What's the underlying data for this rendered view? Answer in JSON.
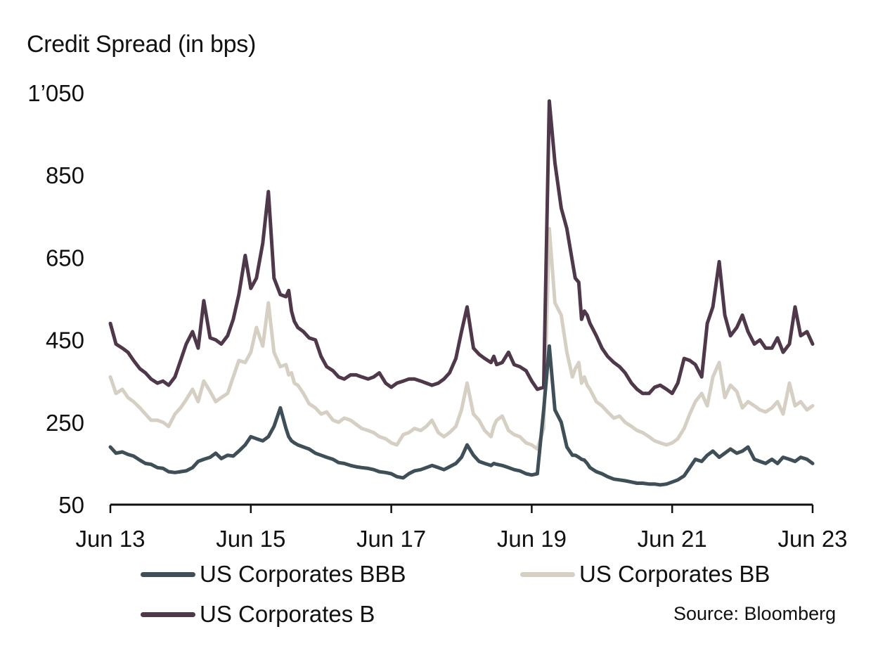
{
  "chart_data": {
    "type": "line",
    "title": "",
    "ylabel": "Credit Spread (in bps)",
    "xlabel": "",
    "ylim": [
      50,
      1050
    ],
    "yticks": [
      50,
      250,
      450,
      650,
      850,
      1050
    ],
    "ytick_labels": [
      "50",
      "250",
      "450",
      "650",
      "850",
      "1’050"
    ],
    "xlim": [
      2013.5,
      2023.5
    ],
    "xticks": [
      2013.5,
      2015.5,
      2017.5,
      2019.5,
      2021.5,
      2023.5
    ],
    "xtick_labels": [
      "Jun 13",
      "Jun 15",
      "Jun 17",
      "Jun 19",
      "Jun 21",
      "Jun 23"
    ],
    "grid": false,
    "legend_position": "bottom",
    "source": "Source: Bloomberg",
    "x": [
      2013.5,
      2013.58,
      2013.67,
      2013.75,
      2013.83,
      2013.92,
      2014.0,
      2014.08,
      2014.17,
      2014.25,
      2014.33,
      2014.42,
      2014.5,
      2014.58,
      2014.67,
      2014.75,
      2014.83,
      2014.92,
      2015.0,
      2015.08,
      2015.17,
      2015.25,
      2015.33,
      2015.42,
      2015.5,
      2015.58,
      2015.67,
      2015.75,
      2015.83,
      2015.92,
      2016.0,
      2016.04,
      2016.08,
      2016.12,
      2016.17,
      2016.25,
      2016.33,
      2016.42,
      2016.5,
      2016.58,
      2016.67,
      2016.75,
      2016.83,
      2016.92,
      2017.0,
      2017.08,
      2017.17,
      2017.25,
      2017.33,
      2017.42,
      2017.5,
      2017.58,
      2017.67,
      2017.75,
      2017.83,
      2017.92,
      2018.0,
      2018.08,
      2018.17,
      2018.25,
      2018.33,
      2018.42,
      2018.5,
      2018.58,
      2018.67,
      2018.75,
      2018.83,
      2018.92,
      2018.96,
      2019.0,
      2019.08,
      2019.17,
      2019.25,
      2019.33,
      2019.42,
      2019.5,
      2019.58,
      2019.67,
      2019.75,
      2019.83,
      2019.92,
      2020.0,
      2020.08,
      2020.12,
      2020.17,
      2020.21,
      2020.25,
      2020.29,
      2020.33,
      2020.42,
      2020.5,
      2020.58,
      2020.67,
      2020.75,
      2020.83,
      2020.92,
      2021.0,
      2021.08,
      2021.17,
      2021.25,
      2021.33,
      2021.42,
      2021.5,
      2021.58,
      2021.67,
      2021.75,
      2021.83,
      2021.92,
      2022.0,
      2022.08,
      2022.17,
      2022.25,
      2022.33,
      2022.42,
      2022.5,
      2022.58,
      2022.67,
      2022.75,
      2022.83,
      2022.92,
      2023.0,
      2023.08,
      2023.17,
      2023.25,
      2023.33,
      2023.42,
      2023.5
    ],
    "series": [
      {
        "name": "US Corporates BBB",
        "color": "#3f4f58",
        "values": [
          190,
          175,
          178,
          172,
          168,
          158,
          150,
          148,
          140,
          138,
          130,
          128,
          130,
          132,
          140,
          155,
          160,
          165,
          175,
          162,
          170,
          168,
          180,
          195,
          215,
          210,
          205,
          215,
          240,
          285,
          235,
          215,
          205,
          200,
          195,
          190,
          185,
          175,
          170,
          165,
          160,
          152,
          150,
          145,
          142,
          140,
          138,
          135,
          130,
          128,
          125,
          118,
          115,
          125,
          132,
          135,
          140,
          145,
          140,
          135,
          142,
          150,
          165,
          195,
          170,
          155,
          150,
          145,
          150,
          148,
          145,
          140,
          135,
          132,
          125,
          122,
          125,
          280,
          435,
          280,
          250,
          190,
          170,
          170,
          165,
          160,
          158,
          150,
          140,
          130,
          125,
          118,
          112,
          110,
          108,
          105,
          102,
          102,
          100,
          100,
          98,
          100,
          105,
          110,
          120,
          140,
          160,
          155,
          170,
          180,
          165,
          175,
          185,
          175,
          180,
          190,
          160,
          155,
          150,
          160,
          150,
          165,
          160,
          155,
          165,
          160,
          150
        ]
      },
      {
        "name": "US Corporates BB",
        "color": "#d6cfc3",
        "values": [
          360,
          320,
          330,
          310,
          300,
          285,
          270,
          255,
          255,
          250,
          240,
          270,
          285,
          305,
          330,
          300,
          350,
          325,
          300,
          310,
          320,
          360,
          400,
          395,
          420,
          480,
          435,
          540,
          420,
          385,
          390,
          365,
          370,
          345,
          340,
          320,
          295,
          285,
          270,
          275,
          255,
          250,
          260,
          255,
          245,
          235,
          230,
          225,
          215,
          210,
          200,
          195,
          220,
          225,
          235,
          230,
          240,
          255,
          225,
          215,
          225,
          240,
          280,
          345,
          270,
          255,
          230,
          215,
          240,
          255,
          265,
          230,
          220,
          215,
          200,
          195,
          185,
          235,
          720,
          540,
          510,
          420,
          360,
          380,
          395,
          345,
          360,
          340,
          330,
          300,
          290,
          275,
          260,
          265,
          250,
          240,
          230,
          225,
          215,
          205,
          200,
          195,
          200,
          210,
          235,
          270,
          300,
          320,
          290,
          360,
          395,
          310,
          340,
          325,
          285,
          300,
          290,
          280,
          275,
          285,
          300,
          270,
          345,
          290,
          300,
          280,
          290
        ]
      },
      {
        "name": "US Corporates B",
        "color": "#4e3849",
        "values": [
          490,
          440,
          430,
          420,
          400,
          380,
          370,
          355,
          345,
          350,
          340,
          360,
          400,
          440,
          470,
          430,
          545,
          455,
          450,
          440,
          460,
          500,
          560,
          655,
          575,
          600,
          685,
          810,
          600,
          560,
          555,
          570,
          520,
          495,
          480,
          470,
          455,
          450,
          410,
          385,
          375,
          360,
          355,
          365,
          365,
          360,
          355,
          360,
          370,
          345,
          335,
          345,
          350,
          355,
          355,
          350,
          345,
          340,
          345,
          355,
          370,
          405,
          470,
          530,
          430,
          415,
          405,
          395,
          410,
          390,
          395,
          420,
          390,
          385,
          375,
          350,
          330,
          335,
          1030,
          880,
          770,
          720,
          640,
          600,
          590,
          500,
          520,
          510,
          490,
          460,
          430,
          410,
          395,
          385,
          370,
          345,
          330,
          320,
          320,
          335,
          340,
          330,
          320,
          345,
          405,
          400,
          390,
          360,
          490,
          530,
          640,
          510,
          460,
          480,
          510,
          470,
          440,
          450,
          430,
          430,
          455,
          420,
          440,
          530,
          460,
          470,
          440
        ]
      }
    ]
  }
}
